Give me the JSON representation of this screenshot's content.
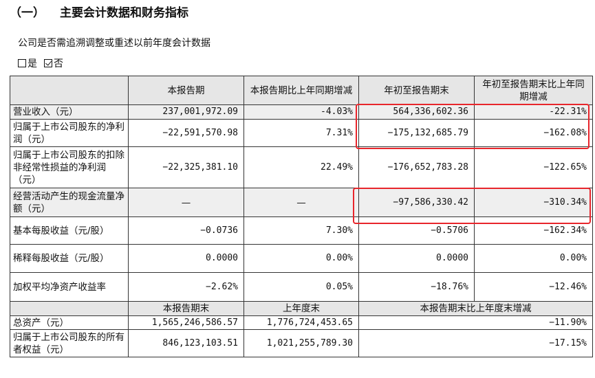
{
  "heading": {
    "number": "（一）",
    "text": "主要会计数据和财务指标"
  },
  "subtitle": "公司是否需追溯调整或重述以前年度会计数据",
  "options": [
    {
      "label": "是",
      "checked": false
    },
    {
      "label": "否",
      "checked": true
    }
  ],
  "table": {
    "headers": [
      "",
      "本报告期",
      "本报告期比上年同期增减",
      "年初至报告期末",
      "年初至报告期末比上年同期增减"
    ],
    "rows": [
      {
        "label": "营业收入（元）",
        "values": [
          "237,001,972.09",
          "-4.03%",
          "564,336,602.36",
          "-22.31%"
        ]
      },
      {
        "label": "归属于上市公司股东的净利润（元）",
        "values": [
          "−22,591,570.98",
          "7.31%",
          "−175,132,685.79",
          "−162.08%"
        ]
      },
      {
        "label": "归属于上市公司股东的扣除非经常性损益的净利润（元）",
        "values": [
          "−22,325,381.10",
          "22.49%",
          "−176,652,783.28",
          "−122.65%"
        ]
      },
      {
        "label": "经营活动产生的现金流量净额（元）",
        "values": [
          "—",
          "—",
          "−97,586,330.42",
          "−310.34%"
        ]
      },
      {
        "label": "基本每股收益（元/股）",
        "values": [
          "−0.0736",
          "7.30%",
          "−0.5706",
          "−162.34%"
        ]
      },
      {
        "label": "稀释每股收益（元/股）",
        "values": [
          "0.0000",
          "0.00%",
          "0.0000",
          "0.00%"
        ]
      },
      {
        "label": "加权平均净资产收益率",
        "values": [
          "−2.62%",
          "0.05%",
          "−18.76%",
          "−12.46%"
        ]
      }
    ],
    "headers2": [
      "",
      "本报告期末",
      "上年度末",
      "本报告期末比上年度末增减"
    ],
    "rows2": [
      {
        "label": "总资产（元）",
        "values": [
          "1,565,246,586.57",
          "1,776,724,453.65",
          "−11.90%"
        ]
      },
      {
        "label": "归属于上市公司股东的所有者权益（元）",
        "values": [
          "846,123,103.51",
          "1,021,255,789.30",
          "−17.15%"
        ]
      }
    ]
  },
  "highlight_color": "#e8252b"
}
